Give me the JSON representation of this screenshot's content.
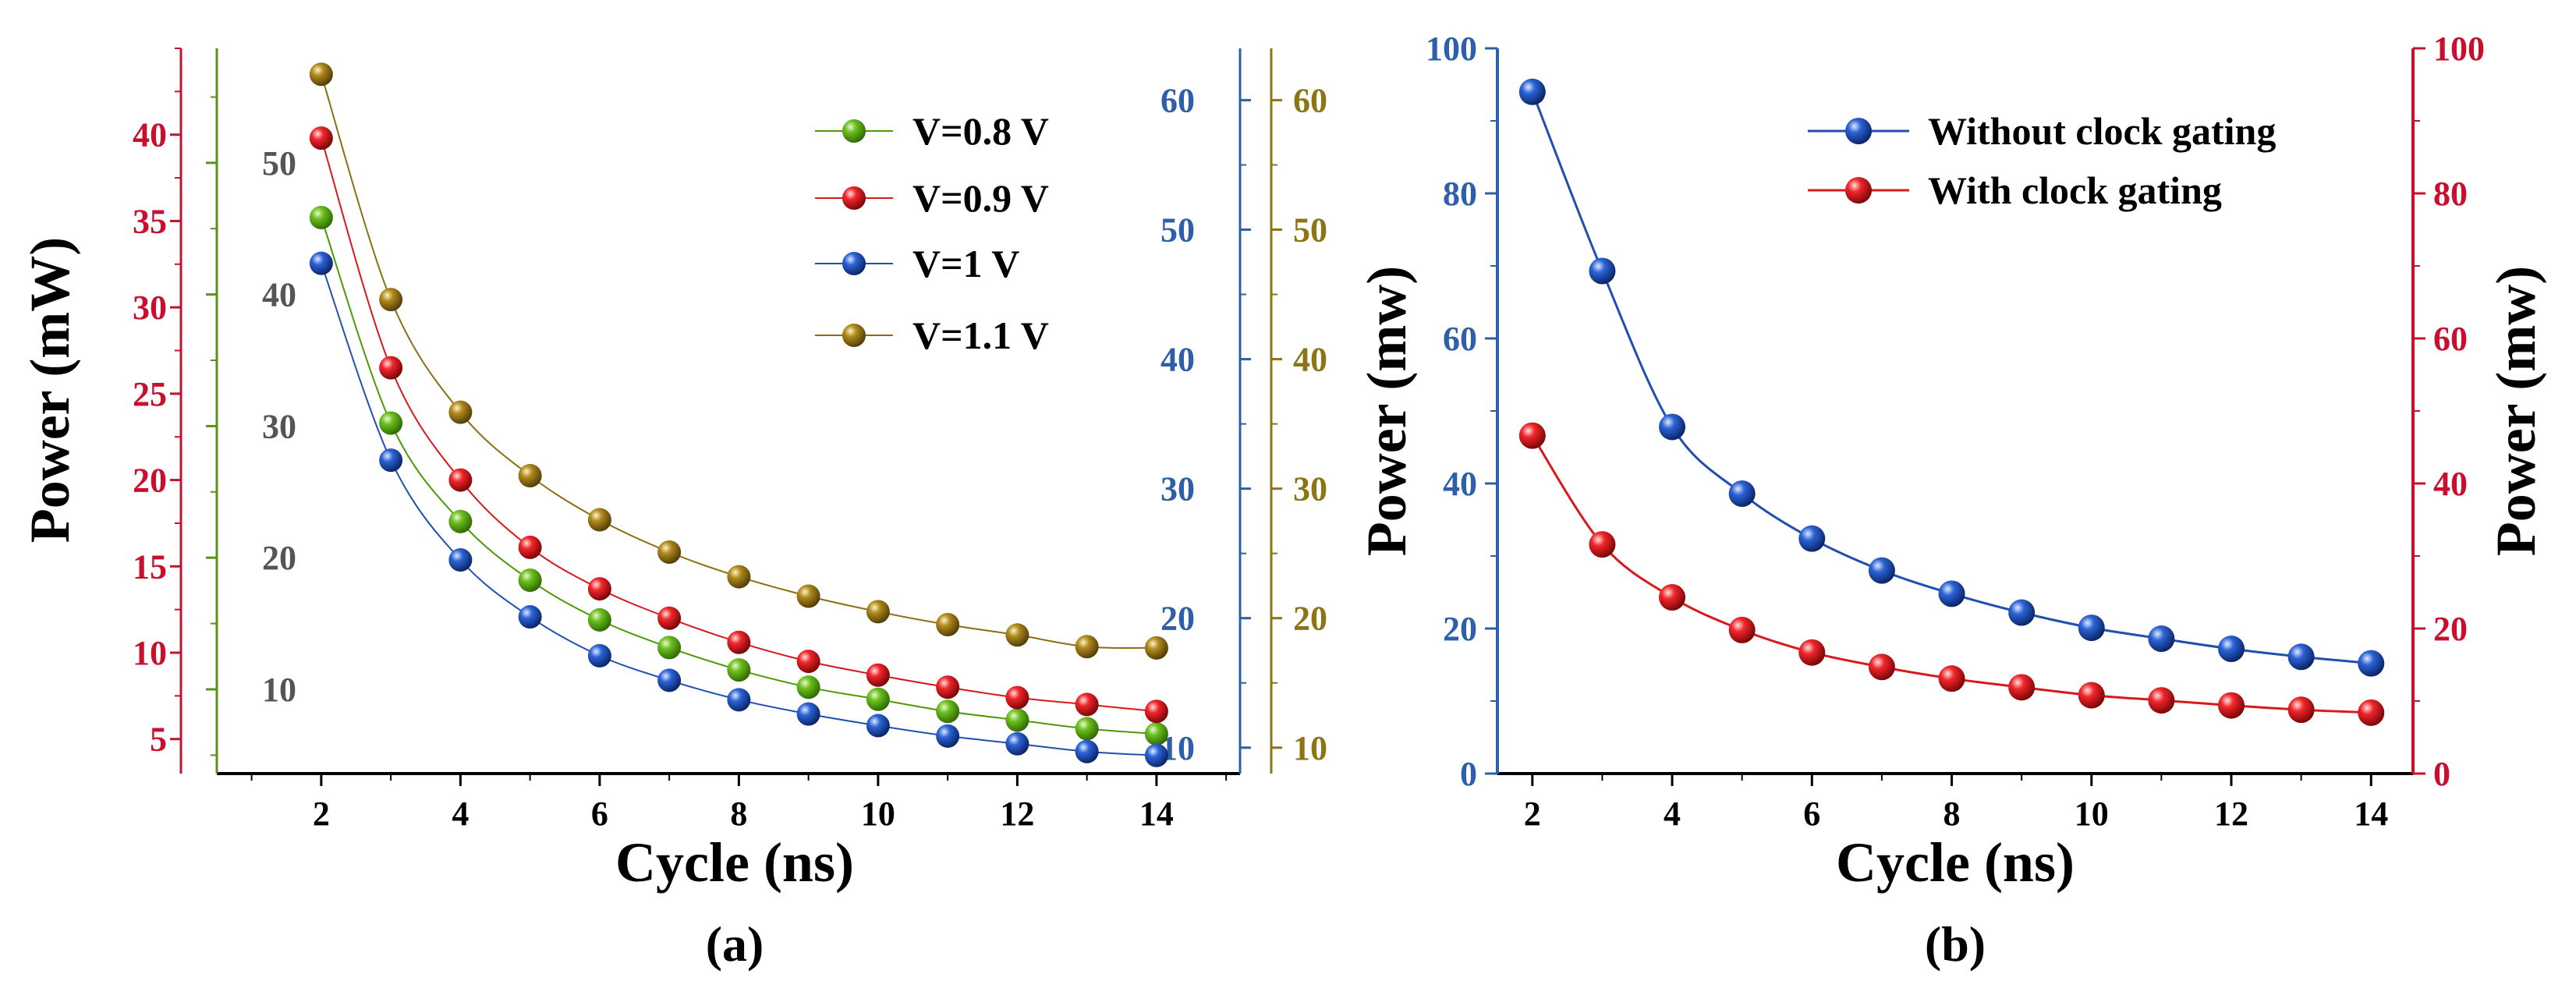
{
  "chart_data": [
    {
      "id": "a",
      "type": "line",
      "caption": "(a)",
      "xlabel": "Cycle (ns)",
      "ylabel": "Power (mW)",
      "x_ticks": [
        2,
        4,
        6,
        8,
        10,
        12,
        14
      ],
      "xlim": [
        0.5,
        15.2
      ],
      "axes": [
        {
          "key": "red",
          "color": "#c8102e",
          "range": [
            3,
            45
          ],
          "ticks": [
            5,
            10,
            15,
            20,
            25,
            30,
            35,
            40
          ]
        },
        {
          "key": "green",
          "color": "#5a9216",
          "label_color": "#555555",
          "range": [
            3.6,
            58.7
          ],
          "ticks": [
            10,
            20,
            30,
            40,
            50
          ]
        },
        {
          "key": "blue",
          "color": "#2e5fa8",
          "range": [
            8,
            64
          ],
          "ticks": [
            10,
            20,
            30,
            40,
            50,
            60
          ]
        },
        {
          "key": "gold",
          "color": "#8b7514",
          "range": [
            8,
            64
          ],
          "ticks": [
            10,
            20,
            30,
            40,
            50,
            60
          ]
        }
      ],
      "series": [
        {
          "name": "V=0.8 V",
          "color": "#4e9a06",
          "axis": "red",
          "x": [
            2,
            3,
            4,
            5,
            6,
            7,
            8,
            9,
            10,
            11,
            12,
            13,
            14
          ],
          "values": [
            35.2,
            23.3,
            17.6,
            14.2,
            11.9,
            10.3,
            9.0,
            8.0,
            7.3,
            6.6,
            6.1,
            5.6,
            5.3
          ]
        },
        {
          "name": "V=0.9 V",
          "color": "#d7191c",
          "axis": "red",
          "x": [
            2,
            3,
            4,
            5,
            6,
            7,
            8,
            9,
            10,
            11,
            12,
            13,
            14
          ],
          "values": [
            39.8,
            26.5,
            20.0,
            16.1,
            13.7,
            12.0,
            10.6,
            9.5,
            8.7,
            8.0,
            7.4,
            7.0,
            6.6
          ]
        },
        {
          "name": "V=1 V",
          "color": "#1f4fb0",
          "axis": "blue",
          "x": [
            2,
            3,
            4,
            5,
            6,
            7,
            8,
            9,
            10,
            11,
            12,
            13,
            14
          ],
          "values": [
            47.4,
            32.2,
            24.5,
            20.1,
            17.1,
            15.2,
            13.7,
            12.6,
            11.7,
            10.9,
            10.3,
            9.7,
            9.4
          ]
        },
        {
          "name": "V=1.1 V",
          "color": "#8c6d12",
          "axis": "gold",
          "x": [
            2,
            3,
            4,
            5,
            6,
            7,
            8,
            9,
            10,
            11,
            12,
            13,
            14
          ],
          "values": [
            62.0,
            44.6,
            35.9,
            31.0,
            27.6,
            25.1,
            23.2,
            21.7,
            20.5,
            19.5,
            18.7,
            17.8,
            17.7
          ]
        }
      ],
      "legend": [
        "V=0.8 V",
        "V=0.9 V",
        "V=1 V",
        "V=1.1 V"
      ],
      "legend_position": "top-right"
    },
    {
      "id": "b",
      "type": "line",
      "caption": "(b)",
      "xlabel": "Cycle (ns)",
      "ylabel_left": "Power (mw)",
      "ylabel_right": "Power (mw)",
      "x_ticks": [
        2,
        4,
        6,
        8,
        10,
        12,
        14
      ],
      "xlim": [
        1.5,
        14.6
      ],
      "ylim": [
        0,
        100
      ],
      "y_ticks": [
        0,
        20,
        40,
        60,
        80,
        100
      ],
      "left_axis_color": "#2e5fa8",
      "right_axis_color": "#c8102e",
      "series": [
        {
          "name": "Without clock gating",
          "color": "#1f4fb0",
          "x": [
            2,
            3,
            4,
            5,
            6,
            7,
            8,
            9,
            10,
            11,
            12,
            13,
            14
          ],
          "values": [
            94.0,
            69.3,
            47.8,
            38.6,
            32.4,
            28.0,
            24.8,
            22.2,
            20.1,
            18.6,
            17.2,
            16.1,
            15.2
          ]
        },
        {
          "name": "With clock gating",
          "color": "#d7191c",
          "x": [
            2,
            3,
            4,
            5,
            6,
            7,
            8,
            9,
            10,
            11,
            12,
            13,
            14
          ],
          "values": [
            46.6,
            31.6,
            24.3,
            19.8,
            16.7,
            14.7,
            13.1,
            11.9,
            10.8,
            10.1,
            9.4,
            8.8,
            8.4
          ]
        }
      ],
      "legend": [
        "Without clock gating",
        "With clock gating"
      ],
      "legend_position": "top-right"
    }
  ]
}
